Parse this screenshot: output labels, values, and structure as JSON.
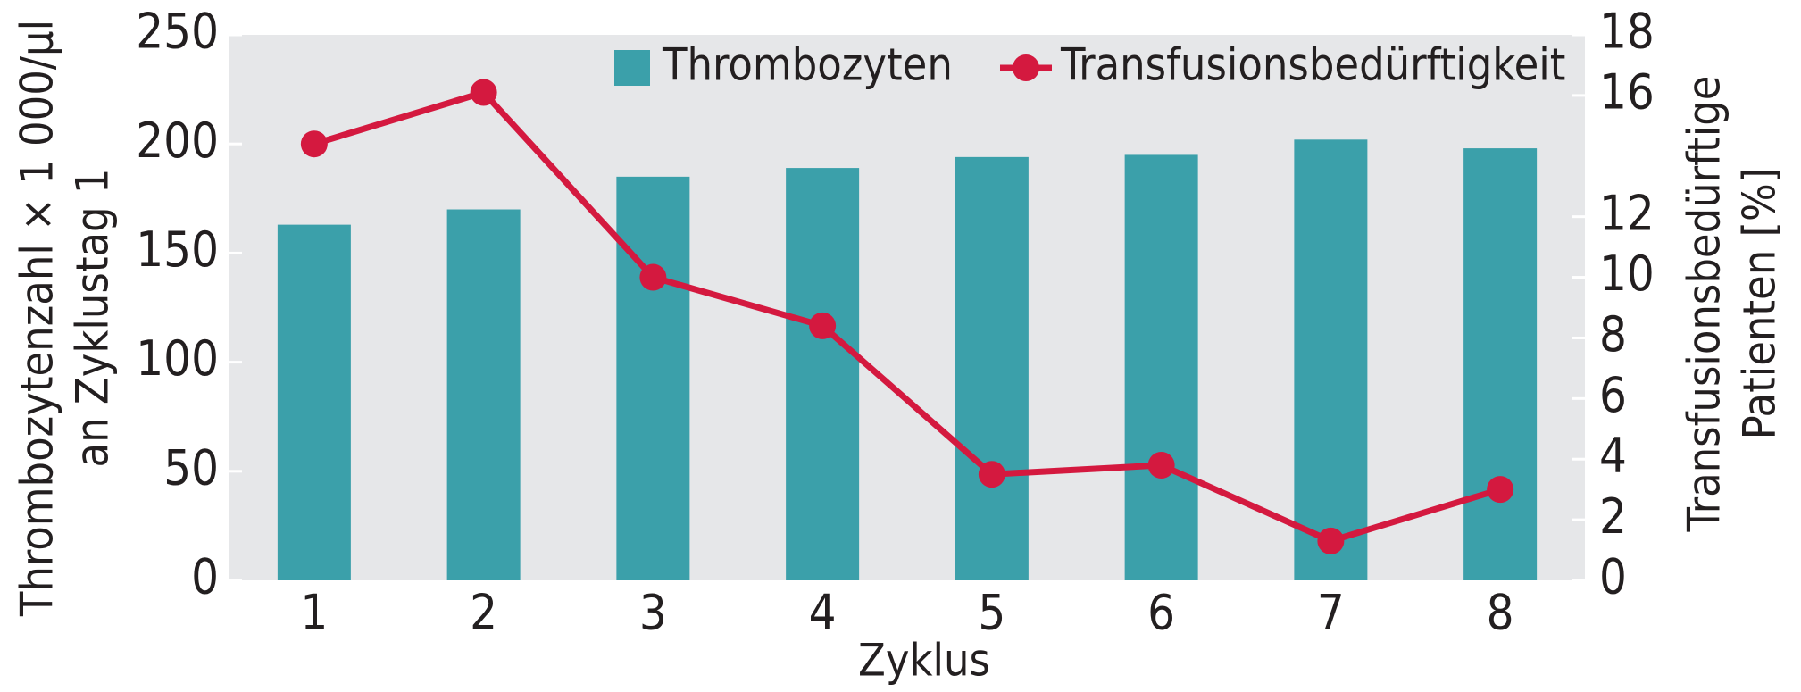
{
  "chart_data": {
    "type": "bar-line",
    "categories": [
      "1",
      "2",
      "3",
      "4",
      "5",
      "6",
      "7",
      "8"
    ],
    "series": [
      {
        "name": "Thrombozyten",
        "type": "bar",
        "color": "#3ba0aa",
        "values": [
          163,
          170,
          185,
          189,
          194,
          195,
          202,
          198
        ]
      },
      {
        "name": "Transfusionsbedürftigkeit",
        "type": "line",
        "axis": "y2",
        "color": "#d4193f",
        "values": [
          14.4,
          16.1,
          10.0,
          8.4,
          3.5,
          3.8,
          1.3,
          3.0
        ]
      }
    ],
    "x_label": "Zyklus",
    "y_label": [
      "Thrombozytenzahl × 1 000/µl",
      "an Zyklustag 1"
    ],
    "y2_label": [
      "Transfusionsbedürftige",
      "Patienten [%]"
    ],
    "ylim": [
      0,
      250
    ],
    "yticks": [
      0,
      50,
      100,
      150,
      200,
      250
    ],
    "y2lim": [
      0,
      18
    ],
    "y2ticks": [
      0,
      2,
      4,
      6,
      8,
      10,
      12,
      16,
      18
    ],
    "plot_background": "#e6e7e9",
    "legend": "top-right"
  }
}
